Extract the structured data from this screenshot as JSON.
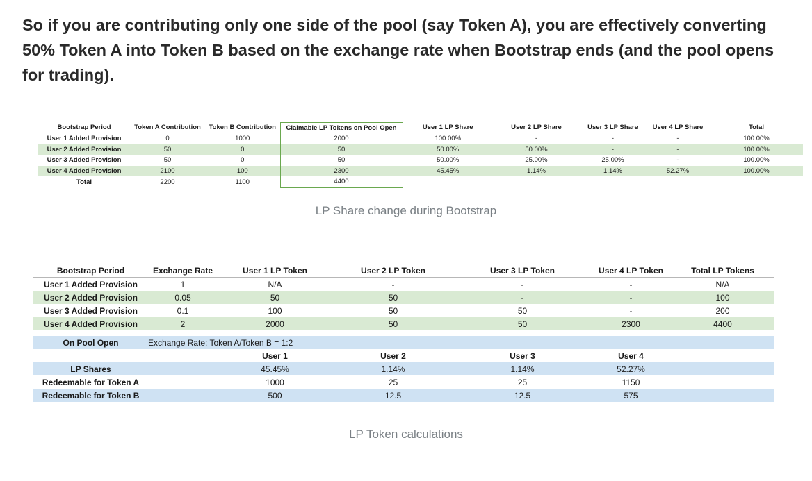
{
  "intro": "So if you are contributing only one side of the pool (say Token A), you are effectively converting 50% Token A into Token B based on the exchange rate when Bootstrap ends (and the pool opens for trading).",
  "table1": {
    "headers": [
      "Bootstrap Period",
      "Token A Contribution",
      "Token B Contribution",
      "Claimable LP Tokens on Pool Open",
      "User 1 LP Share",
      "User 2 LP Share",
      "User 3 LP Share",
      "User 4 LP Share",
      "Total"
    ],
    "rows": [
      [
        "User 1 Added Provision",
        "0",
        "1000",
        "2000",
        "100.00%",
        "-",
        "-",
        "-",
        "100.00%"
      ],
      [
        "User 2 Added Provision",
        "50",
        "0",
        "50",
        "50.00%",
        "50.00%",
        "-",
        "-",
        "100.00%"
      ],
      [
        "User 3 Added Provision",
        "50",
        "0",
        "50",
        "50.00%",
        "25.00%",
        "25.00%",
        "-",
        "100.00%"
      ],
      [
        "User 4 Added Provision",
        "2100",
        "100",
        "2300",
        "45.45%",
        "1.14%",
        "1.14%",
        "52.27%",
        "100.00%"
      ]
    ],
    "total_row": [
      "Total",
      "2200",
      "1100",
      "4400"
    ]
  },
  "caption1": "LP Share change during Bootstrap",
  "table2": {
    "headers": [
      "Bootstrap Period",
      "Exchange Rate",
      "User 1 LP Token",
      "User 2 LP Token",
      "User 3 LP Token",
      "User 4 LP Token",
      "Total LP Tokens"
    ],
    "rows": [
      [
        "User 1 Added Provision",
        "1",
        "N/A",
        "-",
        "-",
        "-",
        "N/A"
      ],
      [
        "User 2 Added Provision",
        "0.05",
        "50",
        "50",
        "-",
        "-",
        "100"
      ],
      [
        "User 3 Added Provision",
        "0.1",
        "100",
        "50",
        "50",
        "-",
        "200"
      ],
      [
        "User 4 Added Provision",
        "2",
        "2000",
        "50",
        "50",
        "2300",
        "4400"
      ]
    ],
    "pool_open_label": "On Pool Open",
    "pool_open_rate": "Exchange Rate: Token A/Token B = 1:2",
    "users": [
      "User 1",
      "User 2",
      "User 3",
      "User 4"
    ],
    "lp_shares": {
      "label": "LP Shares",
      "values": [
        "45.45%",
        "1.14%",
        "1.14%",
        "52.27%"
      ]
    },
    "redeem_a": {
      "label": "Redeemable for Token A",
      "values": [
        "1000",
        "25",
        "25",
        "1150"
      ]
    },
    "redeem_b": {
      "label": "Redeemable for Token B",
      "values": [
        "500",
        "12.5",
        "12.5",
        "575"
      ]
    }
  },
  "caption2": "LP Token calculations",
  "colors": {
    "green_row": "#d9ead3",
    "blue_row": "#cfe2f3",
    "highlight_border": "#6aa84f",
    "caption": "#7a8085"
  }
}
